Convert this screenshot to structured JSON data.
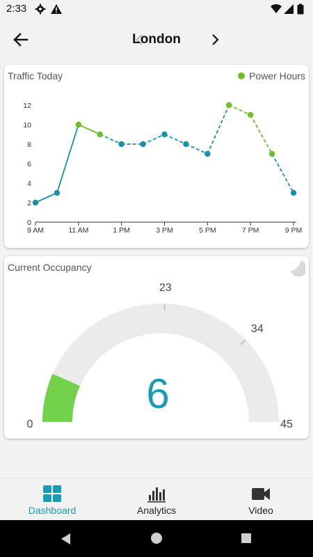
{
  "status_bar": {
    "time": "2:33",
    "left_icons": [
      "gear-icon",
      "warning-icon"
    ],
    "right_icons": [
      "wifi-icon",
      "signal-icon",
      "battery-icon"
    ]
  },
  "header": {
    "city": "London",
    "back_icon": "arrow-left-icon",
    "prev_icon": "chevron-left-icon",
    "next_icon": "chevron-right-icon"
  },
  "traffic": {
    "title": "Traffic Today",
    "legend_label": "Power Hours",
    "colors": {
      "normal": "#1a8fa8",
      "power": "#6dbf2c",
      "axis": "#333333"
    }
  },
  "chart_data": {
    "type": "line",
    "title": "Traffic Today",
    "legend": [
      {
        "name": "Power Hours",
        "color": "#6dbf2c"
      }
    ],
    "x": [
      "9 AM",
      "10 AM",
      "11 AM",
      "12 PM",
      "1 PM",
      "2 PM",
      "3 PM",
      "4 PM",
      "5 PM",
      "6 PM",
      "7 PM",
      "8 PM",
      "9 PM"
    ],
    "xticks": [
      "9 AM",
      "11 AM",
      "1 PM",
      "3 PM",
      "5 PM",
      "7 PM",
      "9 PM"
    ],
    "values": [
      2,
      3,
      10,
      9,
      8,
      8,
      9,
      8,
      7,
      12,
      11,
      7,
      3
    ],
    "power_hours": [
      false,
      false,
      true,
      true,
      false,
      false,
      false,
      false,
      false,
      true,
      true,
      true,
      false
    ],
    "dashed_from_index": 3,
    "ylim": [
      0,
      12
    ],
    "yticks": [
      0,
      2,
      4,
      6,
      8,
      10,
      12
    ],
    "grid": false
  },
  "occupancy": {
    "title": "Current Occupancy",
    "value": "6",
    "current": 6,
    "min": 0,
    "max": 45,
    "min_label": "0",
    "max_label": "45",
    "ticks": [
      {
        "value": 23,
        "label": "23"
      },
      {
        "value": 34,
        "label": "34"
      }
    ],
    "colors": {
      "fill": "#74d14c",
      "track": "#ebebeb",
      "value": "#1a9bb4"
    }
  },
  "bottom_nav": {
    "items": [
      {
        "label": "Dashboard",
        "icon": "dashboard-icon",
        "active": true
      },
      {
        "label": "Analytics",
        "icon": "bar-chart-icon",
        "active": false
      },
      {
        "label": "Video",
        "icon": "video-camera-icon",
        "active": false
      }
    ]
  },
  "system_nav": {
    "icons": [
      "back-triangle-icon",
      "home-circle-icon",
      "recents-square-icon"
    ]
  }
}
